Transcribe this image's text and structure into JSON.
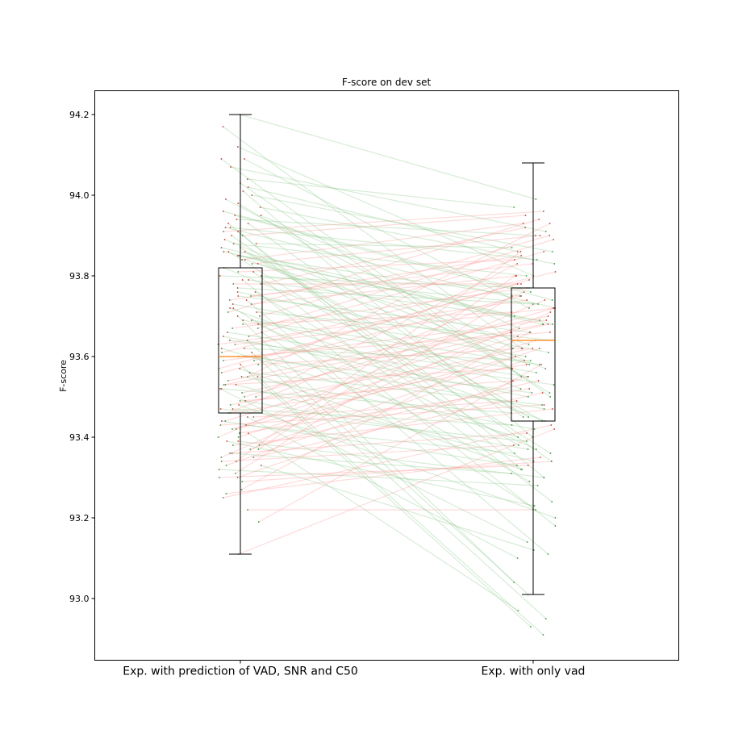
{
  "chart_data": {
    "type": "box",
    "title": "F-score on dev set",
    "ylabel": "F-score",
    "xlabel": "",
    "categories": [
      "Exp. with prediction of VAD, SNR and C50",
      "Exp. with only vad"
    ],
    "ylim": [
      92.85,
      94.26
    ],
    "yticks": [
      "93.0",
      "93.2",
      "93.4",
      "93.6",
      "93.8",
      "94.0",
      "94.2"
    ],
    "grid": false,
    "boxes": [
      {
        "whisker_low": 93.11,
        "q1": 93.46,
        "median": 93.6,
        "q3": 93.82,
        "whisker_high": 94.2
      },
      {
        "whisker_low": 93.01,
        "q1": 93.44,
        "median": 93.64,
        "q3": 93.77,
        "whisker_high": 94.08
      }
    ],
    "pairs": [
      [
        94.2,
        93.99
      ],
      [
        94.17,
        93.62
      ],
      [
        94.12,
        93.8
      ],
      [
        94.09,
        93.5
      ],
      [
        94.09,
        93.72
      ],
      [
        94.07,
        93.91
      ],
      [
        94.04,
        93.97
      ],
      [
        94.03,
        93.55
      ],
      [
        94.02,
        93.86
      ],
      [
        94.01,
        93.4
      ],
      [
        93.99,
        93.62
      ],
      [
        93.97,
        93.83
      ],
      [
        93.96,
        93.76
      ],
      [
        93.95,
        93.67
      ],
      [
        93.94,
        93.9
      ],
      [
        93.93,
        93.45
      ],
      [
        93.92,
        93.72
      ],
      [
        93.91,
        93.32
      ],
      [
        93.9,
        93.95
      ],
      [
        93.89,
        93.57
      ],
      [
        93.88,
        93.8
      ],
      [
        93.87,
        93.68
      ],
      [
        93.86,
        93.36
      ],
      [
        93.85,
        93.75
      ],
      [
        93.84,
        93.63
      ],
      [
        93.83,
        93.9
      ],
      [
        93.82,
        93.52
      ],
      [
        93.81,
        93.84
      ],
      [
        93.8,
        93.77
      ],
      [
        93.79,
        93.69
      ],
      [
        93.78,
        93.92
      ],
      [
        93.77,
        93.73
      ],
      [
        93.76,
        93.61
      ],
      [
        93.75,
        93.66
      ],
      [
        93.74,
        93.85
      ],
      [
        93.73,
        93.8
      ],
      [
        93.72,
        93.44
      ],
      [
        93.71,
        93.64
      ],
      [
        93.7,
        93.9
      ],
      [
        93.69,
        93.58
      ],
      [
        93.68,
        93.71
      ],
      [
        93.67,
        93.77
      ],
      [
        93.66,
        93.55
      ],
      [
        93.65,
        93.86
      ],
      [
        93.64,
        93.53
      ],
      [
        93.63,
        93.74
      ],
      [
        93.62,
        93.59
      ],
      [
        93.61,
        93.81
      ],
      [
        93.6,
        93.66
      ],
      [
        93.6,
        93.51
      ],
      [
        93.59,
        93.69
      ],
      [
        93.58,
        93.62
      ],
      [
        93.57,
        93.78
      ],
      [
        93.56,
        93.48
      ],
      [
        93.55,
        93.93
      ],
      [
        93.54,
        93.7
      ],
      [
        93.53,
        93.57
      ],
      [
        93.52,
        93.46
      ],
      [
        93.51,
        93.68
      ],
      [
        93.5,
        93.83
      ],
      [
        93.49,
        93.54
      ],
      [
        93.48,
        93.62
      ],
      [
        93.47,
        93.39
      ],
      [
        93.46,
        93.76
      ],
      [
        93.45,
        93.49
      ],
      [
        93.44,
        93.66
      ],
      [
        93.43,
        93.36
      ],
      [
        93.42,
        93.6
      ],
      [
        93.41,
        93.52
      ],
      [
        93.4,
        93.74
      ],
      [
        93.39,
        93.3
      ],
      [
        93.38,
        93.47
      ],
      [
        93.37,
        93.62
      ],
      [
        93.36,
        93.41
      ],
      [
        93.35,
        93.71
      ],
      [
        93.34,
        93.38
      ],
      [
        93.33,
        93.59
      ],
      [
        93.32,
        93.28
      ],
      [
        93.3,
        93.55
      ],
      [
        93.29,
        93.34
      ],
      [
        93.27,
        93.66
      ],
      [
        93.25,
        93.43
      ],
      [
        93.22,
        93.22
      ],
      [
        93.19,
        93.58
      ],
      [
        93.11,
        93.42
      ],
      [
        93.83,
        93.58
      ],
      [
        93.87,
        93.44
      ],
      [
        93.81,
        93.24
      ],
      [
        93.79,
        93.18
      ],
      [
        93.74,
        93.11
      ],
      [
        93.7,
        93.04
      ],
      [
        93.66,
        93.22
      ],
      [
        93.64,
        93.01
      ],
      [
        93.61,
        92.95
      ],
      [
        93.58,
        92.93
      ],
      [
        93.55,
        92.91
      ],
      [
        93.52,
        93.14
      ],
      [
        93.48,
        93.2
      ],
      [
        93.45,
        93.1
      ],
      [
        93.41,
        92.97
      ],
      [
        93.39,
        93.23
      ],
      [
        93.36,
        93.31
      ],
      [
        93.33,
        93.12
      ],
      [
        93.3,
        93.33
      ],
      [
        93.26,
        93.35
      ],
      [
        93.93,
        93.3
      ],
      [
        93.9,
        93.34
      ],
      [
        93.86,
        93.45
      ],
      [
        93.76,
        93.38
      ],
      [
        93.72,
        93.29
      ],
      [
        93.68,
        93.37
      ],
      [
        93.62,
        93.4
      ],
      [
        93.57,
        93.32
      ],
      [
        93.53,
        93.34
      ],
      [
        93.47,
        93.43
      ],
      [
        93.43,
        93.48
      ],
      [
        93.4,
        93.64
      ],
      [
        93.37,
        93.8
      ],
      [
        93.34,
        93.86
      ],
      [
        93.31,
        93.75
      ],
      [
        93.91,
        93.96
      ],
      [
        93.88,
        93.87
      ],
      [
        93.84,
        93.93
      ],
      [
        93.78,
        93.78
      ],
      [
        93.75,
        93.83
      ],
      [
        93.71,
        93.94
      ],
      [
        93.67,
        93.89
      ],
      [
        93.63,
        93.72
      ],
      [
        93.59,
        93.79
      ],
      [
        93.56,
        93.75
      ],
      [
        93.53,
        93.68
      ],
      [
        93.5,
        93.72
      ],
      [
        93.46,
        93.58
      ],
      [
        93.42,
        93.65
      ],
      [
        93.38,
        93.54
      ],
      [
        93.35,
        93.51
      ],
      [
        93.92,
        93.84
      ],
      [
        93.86,
        93.68
      ],
      [
        93.8,
        93.73
      ],
      [
        93.73,
        93.6
      ],
      [
        93.69,
        93.56
      ],
      [
        93.65,
        93.5
      ],
      [
        93.6,
        93.47
      ],
      [
        93.55,
        93.42
      ],
      [
        93.49,
        93.37
      ],
      [
        93.44,
        93.33
      ],
      [
        93.95,
        93.74
      ],
      [
        94.0,
        93.86
      ],
      [
        93.98,
        93.51
      ],
      [
        93.85,
        93.7
      ]
    ],
    "series_colors": {
      "increase": "#ff9999",
      "decrease": "#8cc98c"
    },
    "box_color": "#000000",
    "median_color": "#ff7f0e"
  }
}
